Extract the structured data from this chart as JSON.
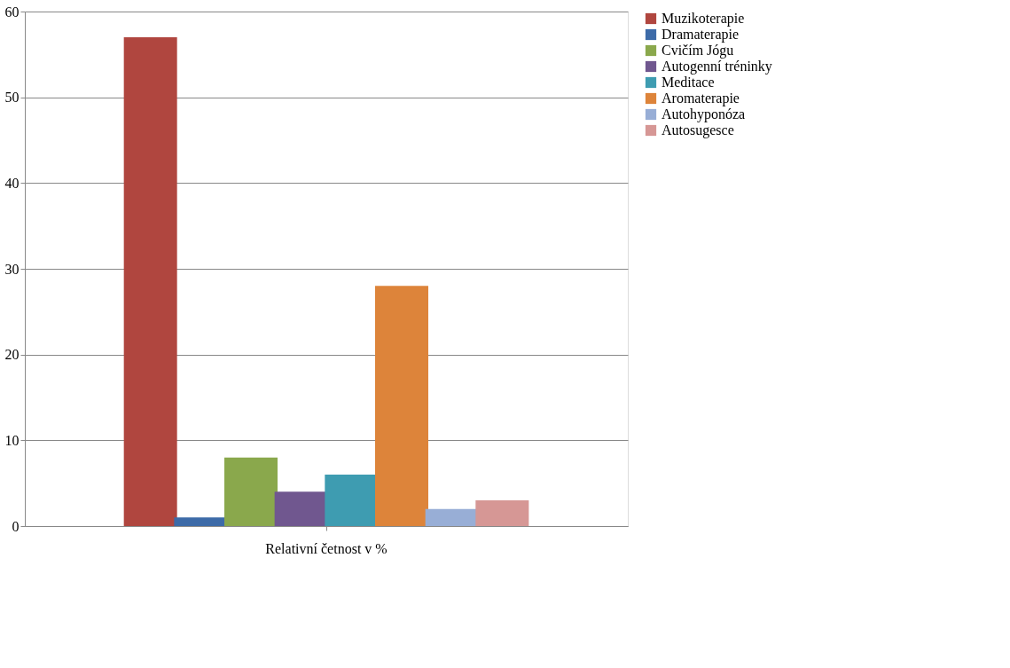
{
  "chart_data": {
    "type": "bar",
    "categories": [
      "Relativní četnost v %"
    ],
    "series": [
      {
        "name": "Muzikoterapie",
        "color": "#b0463f",
        "values": [
          57
        ]
      },
      {
        "name": "Dramaterapie",
        "color": "#3d6ba8",
        "values": [
          1
        ]
      },
      {
        "name": "Cvičím Jógu",
        "color": "#8aa84c",
        "values": [
          8
        ]
      },
      {
        "name": "Autogenní tréninky",
        "color": "#70578f",
        "values": [
          4
        ]
      },
      {
        "name": "Meditace",
        "color": "#3e9cb1",
        "values": [
          6
        ]
      },
      {
        "name": "Aromaterapie",
        "color": "#dd843a",
        "values": [
          28
        ]
      },
      {
        "name": "Autohyponóza",
        "color": "#98aed6",
        "values": [
          2
        ]
      },
      {
        "name": "Autosugesce",
        "color": "#d69795",
        "values": [
          3
        ]
      }
    ],
    "ylim": [
      0,
      60
    ],
    "yticks": [
      0,
      10,
      20,
      30,
      40,
      50,
      60
    ],
    "grid": "y",
    "legend": "right"
  }
}
